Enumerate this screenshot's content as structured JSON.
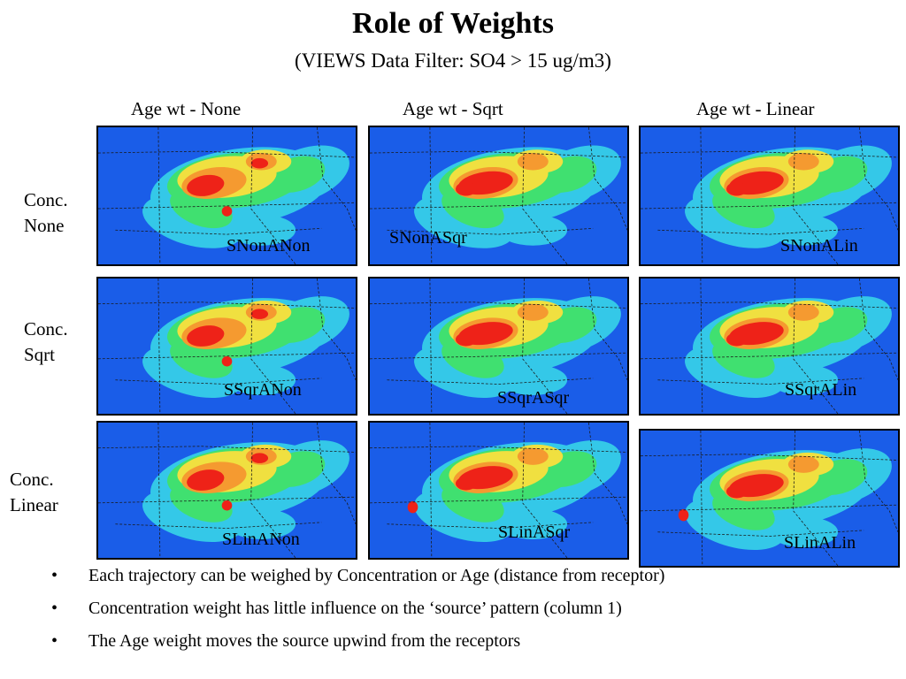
{
  "slide": {
    "title": "Role of Weights",
    "subtitle": "(VIEWS Data Filter: SO4 > 15 ug/m3)"
  },
  "columns": [
    "Age wt - None",
    "Age wt - Sqrt",
    "Age wt - Linear"
  ],
  "rows": [
    {
      "line1": "Conc.",
      "line2": "None"
    },
    {
      "line1": "Conc.",
      "line2": "Sqrt"
    },
    {
      "line1": "Conc.",
      "line2": "Linear"
    }
  ],
  "panels": [
    {
      "label": "SNonANon",
      "variant": "source-both"
    },
    {
      "label": "SNonASqr",
      "variant": "source-core"
    },
    {
      "label": "SNonALin",
      "variant": "source-core"
    },
    {
      "label": "SSqrANon",
      "variant": "source-both"
    },
    {
      "label": "SSqrASqr",
      "variant": "source-core"
    },
    {
      "label": "SSqrALin",
      "variant": "source-core"
    },
    {
      "label": "SLinANon",
      "variant": "source-both"
    },
    {
      "label": "SLinASqr",
      "variant": "source-west"
    },
    {
      "label": "SLinALin",
      "variant": "source-west"
    }
  ],
  "legend_colors": {
    "background": "#1a5de8",
    "low": "#34c8e8",
    "mid": "#40e070",
    "high": "#f0e040",
    "higher": "#f59a30",
    "peak": "#ee2218"
  },
  "bullets": [
    "Each trajectory can be weighed by Concentration or Age (distance from receptor)",
    "Concentration weight has little influence on the ‘source’ pattern (column 1)",
    "The Age weight moves the source upwind from the receptors"
  ]
}
